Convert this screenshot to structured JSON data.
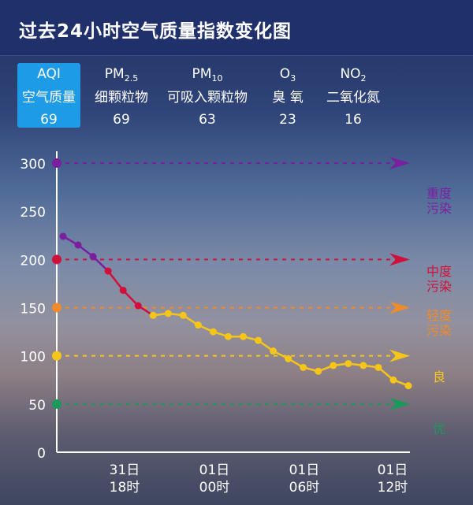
{
  "header": {
    "title": "过去24小时空气质量指数变化图"
  },
  "tabs": [
    {
      "label_main": "AQI",
      "label_sub": "",
      "desc": "空气质量",
      "value": "69",
      "active": true
    },
    {
      "label_main": "PM",
      "label_sub": "2.5",
      "desc": "细颗粒物",
      "value": "69",
      "active": false
    },
    {
      "label_main": "PM",
      "label_sub": "10",
      "desc": "可吸入颗粒物",
      "value": "63",
      "active": false
    },
    {
      "label_main": "O",
      "label_sub": "3",
      "desc": "臭 氧",
      "value": "23",
      "active": false
    },
    {
      "label_main": "NO",
      "label_sub": "2",
      "desc": "二氧化氮",
      "value": "16",
      "active": false
    }
  ],
  "chart_data": {
    "type": "line",
    "title": "过去24小时空气质量指数变化图",
    "y_ticks": [
      "0",
      "50",
      "100",
      "150",
      "200",
      "250",
      "300"
    ],
    "ylim": [
      0,
      300
    ],
    "x_labels": [
      {
        "line1": "31日",
        "line2": "18时"
      },
      {
        "line1": "01日",
        "line2": "00时"
      },
      {
        "line1": "01日",
        "line2": "06时"
      },
      {
        "line1": "01日",
        "line2": "12时"
      }
    ],
    "values": [
      224,
      215,
      203,
      188,
      168,
      152,
      142,
      144,
      142,
      132,
      125,
      120,
      120,
      116,
      105,
      97,
      88,
      84,
      90,
      92,
      90,
      88,
      75,
      69
    ],
    "thresholds": [
      {
        "value": 300,
        "label": "重度\n污染",
        "color": "#7a1fa0"
      },
      {
        "value": 200,
        "label": "中度\n污染",
        "color": "#d0103a"
      },
      {
        "value": 150,
        "label": "轻度\n污染",
        "color": "#f08a2a"
      },
      {
        "value": 100,
        "label": "良",
        "color": "#f5c518"
      },
      {
        "value": 50,
        "label": "优",
        "color": "#1a9a5a"
      }
    ],
    "grid": false
  }
}
